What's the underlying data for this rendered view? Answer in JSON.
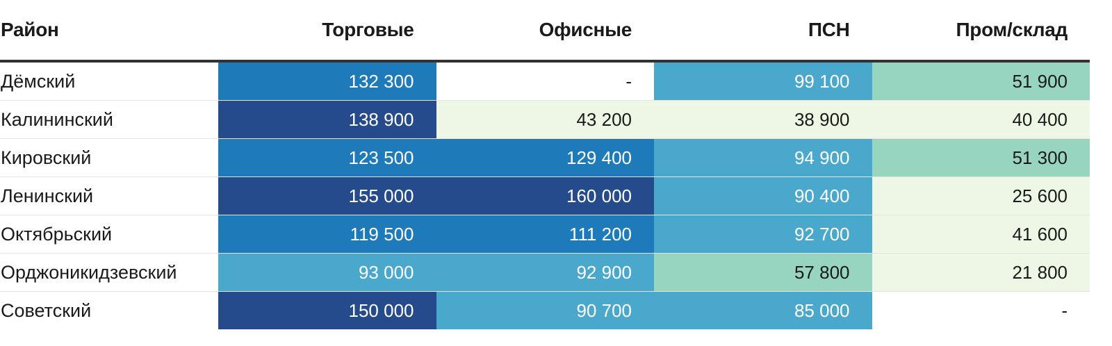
{
  "chart_data": {
    "type": "table",
    "columns": [
      "Район",
      "Торговые",
      "Офисные",
      "ПСН",
      "Пром/склад"
    ],
    "rows": [
      {
        "district": "Дёмский",
        "values": [
          "132 300",
          "-",
          "99 100",
          "51 900"
        ]
      },
      {
        "district": "Калининский",
        "values": [
          "138 900",
          "43 200",
          "38 900",
          "40 400"
        ]
      },
      {
        "district": "Кировский",
        "values": [
          "123 500",
          "129 400",
          "94 900",
          "51 300"
        ]
      },
      {
        "district": "Ленинский",
        "values": [
          "155 000",
          "160 000",
          "90 400",
          "25 600"
        ]
      },
      {
        "district": "Октябрьский",
        "values": [
          "119 500",
          "111 200",
          "92 700",
          "41 600"
        ]
      },
      {
        "district": "Орджоникидзевский",
        "values": [
          "93 000",
          "92 900",
          "57 800",
          "21 800"
        ]
      },
      {
        "district": "Советский",
        "values": [
          "150 000",
          "90 700",
          "85 000",
          "-"
        ]
      }
    ],
    "color_scale": [
      {
        "min": 0,
        "max": 1,
        "bg": "#ffffff",
        "fg": "#1a1a1a"
      },
      {
        "min": 1,
        "max": 50000,
        "bg": "#eef7e6",
        "fg": "#1a1a1a"
      },
      {
        "min": 50000,
        "max": 80000,
        "bg": "#97d5c0",
        "fg": "#1a1a1a"
      },
      {
        "min": 80000,
        "max": 110000,
        "bg": "#4aa8cc",
        "fg": "#ffffff"
      },
      {
        "min": 110000,
        "max": 135000,
        "bg": "#1e7ab8",
        "fg": "#ffffff"
      },
      {
        "min": 135000,
        "max": 999999,
        "bg": "#254b8c",
        "fg": "#ffffff"
      }
    ]
  }
}
